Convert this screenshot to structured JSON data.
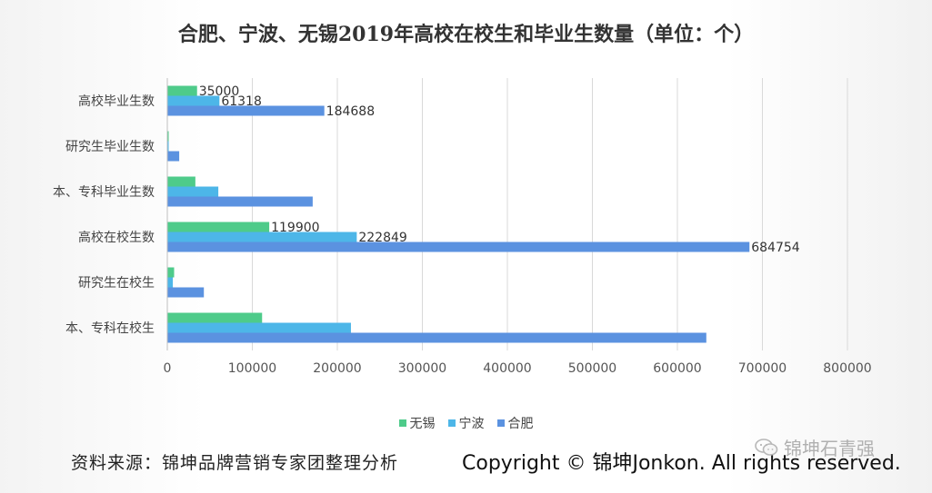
{
  "chart_data": {
    "type": "bar",
    "orientation": "horizontal",
    "title": "合肥、宁波、无锡2019年高校在校生和毕业生数量（单位：个）",
    "categories": [
      "高校毕业生数",
      "研究生毕业生数",
      "本、专科毕业生数",
      "高校在校生数",
      "研究生在校生",
      "本、专科在校生"
    ],
    "series": [
      {
        "name": "无锡",
        "color": "#4ecb8a",
        "values": [
          35000,
          1500,
          33000,
          119900,
          8000,
          111500
        ]
      },
      {
        "name": "宁波",
        "color": "#4db6e8",
        "values": [
          61318,
          1300,
          60000,
          222849,
          6500,
          216000
        ]
      },
      {
        "name": "合肥",
        "color": "#5b92e0",
        "values": [
          184688,
          14000,
          171000,
          684754,
          43000,
          634000
        ]
      }
    ],
    "data_labels": [
      {
        "category": 0,
        "series": 0,
        "text": "35000"
      },
      {
        "category": 0,
        "series": 1,
        "text": "61318"
      },
      {
        "category": 0,
        "series": 2,
        "text": "184688"
      },
      {
        "category": 3,
        "series": 0,
        "text": "119900"
      },
      {
        "category": 3,
        "series": 1,
        "text": "222849"
      },
      {
        "category": 3,
        "series": 2,
        "text": "684754"
      }
    ],
    "xlim": [
      0,
      800000
    ],
    "xticks": [
      "0",
      "100000",
      "200000",
      "300000",
      "400000",
      "500000",
      "600000",
      "700000",
      "800000"
    ],
    "grid": true,
    "legend_position": "bottom"
  },
  "footer": {
    "source": "资料来源：锦坤品牌营销专家团整理分析",
    "copyright": "Copyright © 锦坤Jonkon. All rights reserved.",
    "watermark": "锦坤石青强"
  }
}
